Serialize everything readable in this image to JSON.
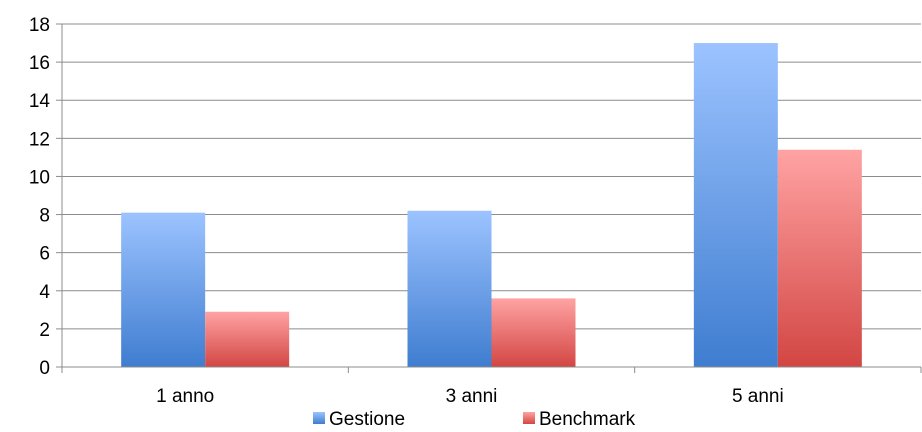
{
  "chart_data": {
    "type": "bar",
    "categories": [
      "1 anno",
      "3 anni",
      "5 anni"
    ],
    "series": [
      {
        "name": "Gestione",
        "values": [
          8.1,
          8.2,
          17.0
        ],
        "color_top": "#9cc3ff",
        "color_bottom": "#3f7dd0"
      },
      {
        "name": "Benchmark",
        "values": [
          2.9,
          3.6,
          11.4
        ],
        "color_top": "#ffa3a3",
        "color_bottom": "#d24643"
      }
    ],
    "ylim": [
      0,
      18
    ],
    "yticks": [
      "0",
      "2",
      "4",
      "6",
      "8",
      "10",
      "12",
      "14",
      "16",
      "18"
    ],
    "grid": true,
    "legend_position": "bottom",
    "title": "",
    "xlabel": "",
    "ylabel": ""
  }
}
